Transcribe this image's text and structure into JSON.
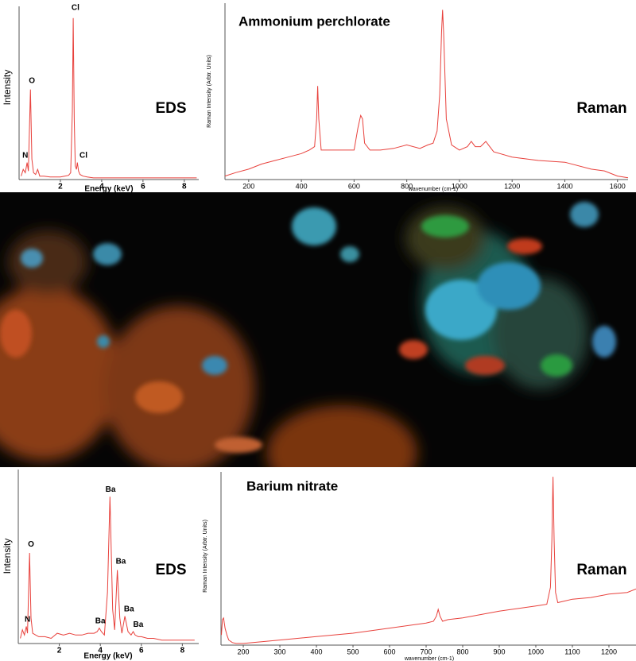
{
  "chart_data": [
    {
      "type": "line",
      "method": "EDS",
      "y_label": "Intensity",
      "x_label": "Energy (keV)",
      "color": "#e8413c",
      "xlim": [
        0,
        8.7
      ],
      "ylim": [
        0,
        100
      ],
      "xticks": [
        2,
        4,
        6,
        8
      ],
      "x": [
        0.1,
        0.2,
        0.3,
        0.39,
        0.45,
        0.55,
        0.62,
        0.7,
        0.8,
        0.9,
        1.0,
        1.2,
        1.5,
        1.8,
        2.0,
        2.2,
        2.4,
        2.5,
        2.58,
        2.62,
        2.67,
        2.72,
        2.78,
        2.82,
        2.88,
        2.95,
        3.1,
        3.3,
        3.6,
        4,
        5,
        6,
        7,
        8,
        8.6
      ],
      "values": [
        2,
        6,
        4,
        10,
        5,
        53,
        12,
        4,
        3,
        6,
        2,
        2,
        1.5,
        1.5,
        1.5,
        2,
        2.5,
        4,
        40,
        95,
        35,
        8,
        6,
        10,
        5,
        3,
        2,
        1.5,
        1,
        1,
        1,
        1,
        1,
        1,
        1
      ],
      "annotations": [
        {
          "text": "N",
          "x": 0.3,
          "y": 14
        },
        {
          "text": "O",
          "x": 0.62,
          "y": 58
        },
        {
          "text": "Cl",
          "x": 2.73,
          "y": 101
        },
        {
          "text": "Cl",
          "x": 3.12,
          "y": 14
        }
      ]
    },
    {
      "type": "line",
      "title": "Ammonium perchlorate",
      "method": "Raman",
      "y_label": "Raman Intensity (Arbtr. Units)",
      "x_label": "wavenumber (cm-1)",
      "color": "#e8413c",
      "xlim": [
        110,
        1640
      ],
      "ylim": [
        0,
        100
      ],
      "xticks": [
        200,
        400,
        600,
        800,
        1000,
        1200,
        1400,
        1600
      ],
      "x": [
        110,
        150,
        200,
        250,
        300,
        350,
        400,
        430,
        450,
        458,
        462,
        466,
        475,
        500,
        550,
        600,
        615,
        625,
        632,
        640,
        660,
        700,
        750,
        800,
        850,
        880,
        900,
        915,
        925,
        932,
        936,
        940,
        950,
        970,
        1000,
        1030,
        1045,
        1050,
        1060,
        1080,
        1100,
        1110,
        1130,
        1200,
        1300,
        1400,
        1500,
        1550,
        1600,
        1640
      ],
      "values": [
        2,
        4,
        6,
        9,
        11,
        13,
        15,
        17,
        19,
        35,
        54,
        35,
        17,
        17,
        17,
        17,
        30,
        37,
        35,
        21,
        17,
        17,
        18,
        20,
        18,
        20,
        21,
        28,
        49,
        85,
        98,
        85,
        35,
        20,
        17,
        19,
        22,
        21,
        19,
        19,
        22,
        20,
        16,
        13,
        11,
        10,
        6,
        5,
        2,
        1
      ]
    },
    {
      "type": "line",
      "method": "EDS",
      "y_label": "Intensity",
      "x_label": "Energy (keV)",
      "color": "#e8413c",
      "xlim": [
        0,
        8.8
      ],
      "ylim": [
        0,
        100
      ],
      "xticks": [
        2,
        4,
        6,
        8
      ],
      "x": [
        0.1,
        0.2,
        0.3,
        0.39,
        0.45,
        0.55,
        0.62,
        0.7,
        0.85,
        1.0,
        1.3,
        1.6,
        1.9,
        2.2,
        2.5,
        2.8,
        3.1,
        3.4,
        3.7,
        3.85,
        3.95,
        4.05,
        4.2,
        4.35,
        4.47,
        4.6,
        4.7,
        4.83,
        4.95,
        5.05,
        5.2,
        5.35,
        5.5,
        5.6,
        5.7,
        5.85,
        6.0,
        6.3,
        6.6,
        7,
        7.5,
        8,
        8.6
      ],
      "values": [
        3,
        8,
        5,
        10,
        6,
        53,
        15,
        6,
        5,
        4,
        4,
        3,
        6,
        5,
        6,
        5,
        5,
        6,
        6,
        7,
        9,
        7,
        5,
        30,
        86,
        20,
        8,
        43,
        15,
        6,
        16,
        7,
        5,
        7,
        5,
        4,
        4,
        3,
        3,
        2,
        2,
        2,
        2
      ],
      "annotations": [
        {
          "text": "N",
          "x": 0.45,
          "y": 14
        },
        {
          "text": "O",
          "x": 0.62,
          "y": 58
        },
        {
          "text": "Ba",
          "x": 4.0,
          "y": 13
        },
        {
          "text": "Ba",
          "x": 4.5,
          "y": 90
        },
        {
          "text": "Ba",
          "x": 5.0,
          "y": 48
        },
        {
          "text": "Ba",
          "x": 5.4,
          "y": 20
        },
        {
          "text": "Ba",
          "x": 5.85,
          "y": 11
        }
      ]
    },
    {
      "type": "line",
      "title": "Barium nitrate",
      "method": "Raman",
      "y_label": "Raman Intensity (Arbtr. Units)",
      "x_label": "wavenumber (cm-1)",
      "color": "#e8413c",
      "xlim": [
        139,
        1274
      ],
      "ylim": [
        0,
        100
      ],
      "xticks": [
        200,
        300,
        400,
        500,
        600,
        700,
        800,
        900,
        1000,
        1100,
        1200
      ],
      "x": [
        140,
        143,
        146,
        150,
        155,
        160,
        170,
        180,
        200,
        250,
        300,
        400,
        500,
        600,
        700,
        720,
        728,
        733,
        738,
        745,
        760,
        800,
        900,
        1000,
        1030,
        1040,
        1044,
        1047,
        1050,
        1054,
        1060,
        1080,
        1100,
        1150,
        1200,
        1250,
        1274
      ],
      "values": [
        6,
        15,
        16,
        10,
        6,
        3,
        1.5,
        1,
        1,
        2,
        3,
        5,
        7,
        10,
        13,
        14,
        17,
        21,
        17,
        14,
        15,
        16,
        20,
        23,
        24,
        34,
        62,
        99,
        62,
        31,
        25,
        26,
        27,
        28,
        30,
        31,
        33
      ]
    }
  ]
}
